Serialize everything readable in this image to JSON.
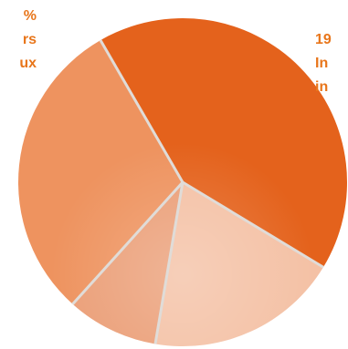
{
  "chart_data": {
    "type": "pie",
    "title": "",
    "slices": [
      {
        "label": "",
        "percent": 42,
        "color": "#e4621c"
      },
      {
        "label": "",
        "percent": 19,
        "color": "#f4c1a5"
      },
      {
        "label": "",
        "percent": 9,
        "color": "#eb9f78"
      },
      {
        "label": "",
        "percent": 30,
        "color": "#ee935f"
      }
    ],
    "start_angle_deg": -120,
    "separator_color": "#e0dcd8",
    "label_color": "#e8761b"
  },
  "labels": {
    "left": [
      "%",
      "rs",
      "ux"
    ],
    "right": [
      "19",
      "In",
      "in"
    ]
  }
}
